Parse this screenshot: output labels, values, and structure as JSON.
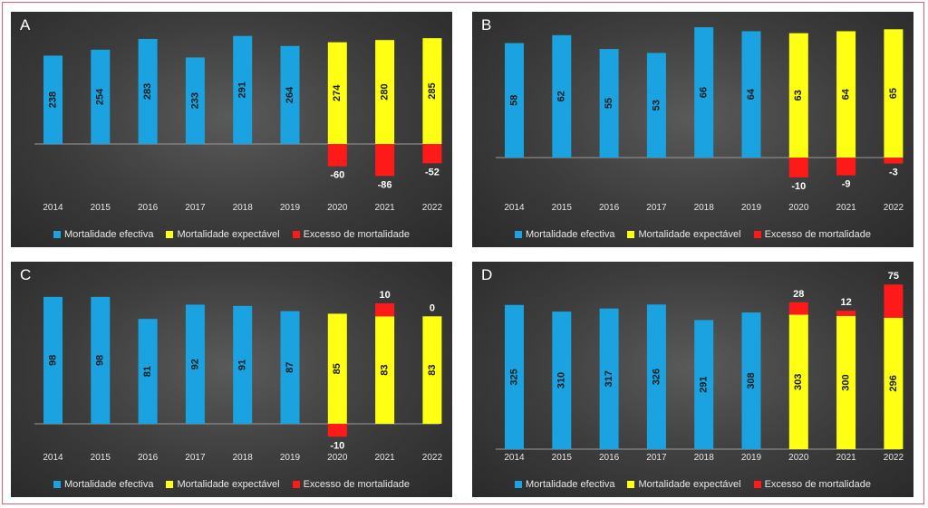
{
  "colors": {
    "effective": "#1aa3e0",
    "expected": "#ffff14",
    "excess": "#ff1a1a"
  },
  "legend": {
    "effective": "Mortalidade efectiva",
    "expected": "Mortalidade expectável",
    "excess": "Excesso de mortalidade"
  },
  "chart_data": [
    {
      "type": "bar",
      "title": "A",
      "categories": [
        "2014",
        "2015",
        "2016",
        "2017",
        "2018",
        "2019",
        "2020",
        "2021",
        "2022"
      ],
      "series": [
        {
          "name": "Mortalidade efectiva",
          "values": [
            238,
            254,
            283,
            233,
            291,
            264,
            null,
            null,
            null
          ]
        },
        {
          "name": "Mortalidade expectável",
          "values": [
            null,
            null,
            null,
            null,
            null,
            null,
            274,
            280,
            285
          ]
        },
        {
          "name": "Excesso de mortalidade",
          "values": [
            null,
            null,
            null,
            null,
            null,
            null,
            -60,
            -86,
            -52
          ]
        }
      ],
      "labels": [
        "238",
        "254",
        "283",
        "233",
        "291",
        "264",
        "274",
        "280",
        "285"
      ],
      "excess_labels": [
        "",
        "",
        "",
        "",
        "",
        "",
        "-60",
        "-86",
        "-52"
      ]
    },
    {
      "type": "bar",
      "title": "B",
      "categories": [
        "2014",
        "2015",
        "2016",
        "2017",
        "2018",
        "2019",
        "2020",
        "2021",
        "2022"
      ],
      "series": [
        {
          "name": "Mortalidade efectiva",
          "values": [
            58,
            62,
            55,
            53,
            66,
            64,
            null,
            null,
            null
          ]
        },
        {
          "name": "Mortalidade expectável",
          "values": [
            null,
            null,
            null,
            null,
            null,
            null,
            63,
            64,
            65
          ]
        },
        {
          "name": "Excesso de mortalidade",
          "values": [
            null,
            null,
            null,
            null,
            null,
            null,
            -10,
            -9,
            -3
          ]
        }
      ],
      "labels": [
        "58",
        "62",
        "55",
        "53",
        "66",
        "64",
        "63",
        "64",
        "65"
      ],
      "excess_labels": [
        "",
        "",
        "",
        "",
        "",
        "",
        "-10",
        "-9",
        "-3"
      ]
    },
    {
      "type": "bar",
      "title": "C",
      "categories": [
        "2014",
        "2015",
        "2016",
        "2017",
        "2018",
        "2019",
        "2020",
        "2021",
        "2022"
      ],
      "series": [
        {
          "name": "Mortalidade efectiva",
          "values": [
            98,
            98,
            81,
            92,
            91,
            87,
            null,
            null,
            null
          ]
        },
        {
          "name": "Mortalidade expectável",
          "values": [
            null,
            null,
            null,
            null,
            null,
            null,
            85,
            83,
            83
          ]
        },
        {
          "name": "Excesso de mortalidade",
          "values": [
            null,
            null,
            null,
            null,
            null,
            null,
            -10,
            10,
            0
          ]
        }
      ],
      "labels": [
        "98",
        "98",
        "81",
        "92",
        "91",
        "87",
        "85",
        "83",
        "83"
      ],
      "excess_labels": [
        "",
        "",
        "",
        "",
        "",
        "",
        "-10",
        "10",
        "0"
      ]
    },
    {
      "type": "bar",
      "title": "D",
      "categories": [
        "2014",
        "2015",
        "2016",
        "2017",
        "2018",
        "2019",
        "2020",
        "2021",
        "2022"
      ],
      "series": [
        {
          "name": "Mortalidade efectiva",
          "values": [
            325,
            310,
            317,
            326,
            291,
            308,
            null,
            null,
            null
          ]
        },
        {
          "name": "Mortalidade expectável",
          "values": [
            null,
            null,
            null,
            null,
            null,
            null,
            303,
            300,
            296
          ]
        },
        {
          "name": "Excesso de mortalidade",
          "values": [
            null,
            null,
            null,
            null,
            null,
            null,
            28,
            12,
            75
          ]
        }
      ],
      "labels": [
        "325",
        "310",
        "317",
        "326",
        "291",
        "308",
        "303",
        "300",
        "296"
      ],
      "excess_labels": [
        "",
        "",
        "",
        "",
        "",
        "",
        "28",
        "12",
        "75"
      ]
    }
  ]
}
